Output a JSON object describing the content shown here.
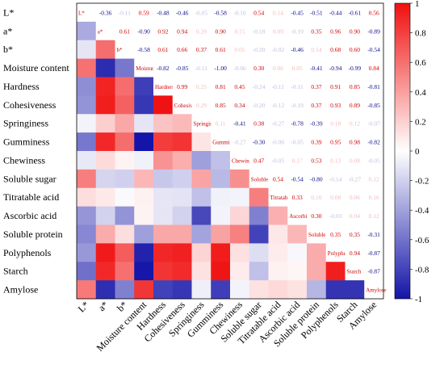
{
  "chart_data": {
    "type": "heatmap",
    "title": "",
    "xlabel": "",
    "ylabel": "",
    "variables": [
      "L*",
      "a*",
      "b*",
      "Moisture content",
      "Hardness",
      "Cohesiveness",
      "Springiness",
      "Gumminess",
      "Chewiness",
      "Soluble sugar",
      "Titratable acid",
      "Ascorbic acid",
      "Soluble protein",
      "Polyphenols",
      "Starch",
      "Amylose"
    ],
    "matrix": [
      [
        1,
        -0.36,
        -0.11,
        0.59,
        -0.48,
        -0.46,
        -0.05,
        -0.58,
        -0.1,
        0.54,
        0.14,
        -0.45,
        -0.51,
        -0.44,
        -0.61,
        0.56
      ],
      [
        -0.36,
        1,
        0.61,
        -0.9,
        0.92,
        0.94,
        0.2,
        0.9,
        0.15,
        -0.18,
        0.09,
        -0.19,
        0.35,
        0.96,
        0.9,
        -0.89
      ],
      [
        -0.11,
        0.61,
        1,
        -0.58,
        0.61,
        0.66,
        0.37,
        0.61,
        0.05,
        -0.2,
        -0.02,
        -0.46,
        0.14,
        0.68,
        0.6,
        -0.54
      ],
      [
        0.59,
        -0.9,
        -0.58,
        1,
        -0.82,
        -0.85,
        -0.11,
        -1.0,
        -0.06,
        0.3,
        0.06,
        0.05,
        -0.41,
        -0.94,
        -0.99,
        0.84
      ],
      [
        -0.48,
        0.92,
        0.61,
        -0.82,
        1,
        0.99,
        0.25,
        0.81,
        0.45,
        -0.24,
        -0.11,
        -0.11,
        0.37,
        0.91,
        0.85,
        -0.81
      ],
      [
        -0.46,
        0.94,
        0.66,
        -0.85,
        0.99,
        1,
        0.29,
        0.85,
        0.34,
        -0.2,
        -0.12,
        -0.19,
        0.37,
        0.93,
        0.89,
        -0.85
      ],
      [
        -0.05,
        0.2,
        0.37,
        -0.11,
        0.25,
        0.29,
        1,
        0.11,
        -0.41,
        0.38,
        -0.27,
        -0.78,
        -0.39,
        0.18,
        0.12,
        -0.07
      ],
      [
        -0.58,
        0.9,
        0.61,
        -1.0,
        0.81,
        0.85,
        0.11,
        1,
        -0.27,
        -0.3,
        -0.06,
        -0.05,
        0.39,
        0.95,
        0.98,
        -0.82
      ],
      [
        -0.1,
        0.15,
        0.05,
        -0.06,
        0.45,
        0.34,
        -0.41,
        -0.27,
        1,
        0.47,
        -0.05,
        0.17,
        0.53,
        0.13,
        0.08,
        -0.05
      ],
      [
        0.54,
        -0.18,
        -0.2,
        0.3,
        -0.24,
        -0.2,
        0.38,
        -0.3,
        0.47,
        1,
        0.54,
        -0.54,
        -0.8,
        -0.14,
        -0.27,
        0.12
      ],
      [
        0.14,
        0.09,
        -0.02,
        0.06,
        -0.11,
        -0.12,
        -0.27,
        -0.06,
        -0.05,
        0.54,
        1,
        0.33,
        0.1,
        0.08,
        0.06,
        0.16
      ],
      [
        -0.45,
        -0.19,
        -0.46,
        0.05,
        -0.11,
        -0.19,
        -0.78,
        -0.05,
        0.17,
        -0.54,
        0.33,
        1,
        0.3,
        -0.03,
        0.04,
        0.12
      ],
      [
        -0.51,
        0.35,
        0.14,
        -0.41,
        0.37,
        0.37,
        -0.39,
        0.39,
        0.53,
        -0.8,
        0.1,
        0.3,
        1,
        0.35,
        0.35,
        -0.31
      ],
      [
        -0.44,
        0.96,
        0.68,
        -0.94,
        0.91,
        0.93,
        0.18,
        0.95,
        0.13,
        -0.14,
        0.08,
        -0.03,
        0.35,
        1,
        0.94,
        -0.87
      ],
      [
        -0.61,
        0.9,
        0.6,
        -0.99,
        0.85,
        0.89,
        0.12,
        0.98,
        0.08,
        -0.27,
        0.06,
        0.04,
        0.35,
        0.94,
        1,
        -0.87
      ],
      [
        0.56,
        -0.89,
        -0.54,
        0.84,
        -0.81,
        -0.85,
        -0.07,
        -0.82,
        -0.05,
        0.12,
        0.16,
        0.12,
        -0.31,
        -0.87,
        -0.87,
        1
      ]
    ],
    "colorbar": {
      "range": [
        -1,
        1
      ],
      "ticks": [
        "1",
        "0.8",
        "0.6",
        "0.4",
        "0.2",
        "0",
        "-0.2",
        "-0.4",
        "-0.6",
        "-0.8",
        "-1"
      ],
      "low_color": "#1414a8",
      "mid_color": "#ffffff",
      "high_color": "#f01010"
    },
    "layout_note": "upper triangle shows values as text, lower triangle shows colored cells, diagonal shows variable names in red"
  }
}
